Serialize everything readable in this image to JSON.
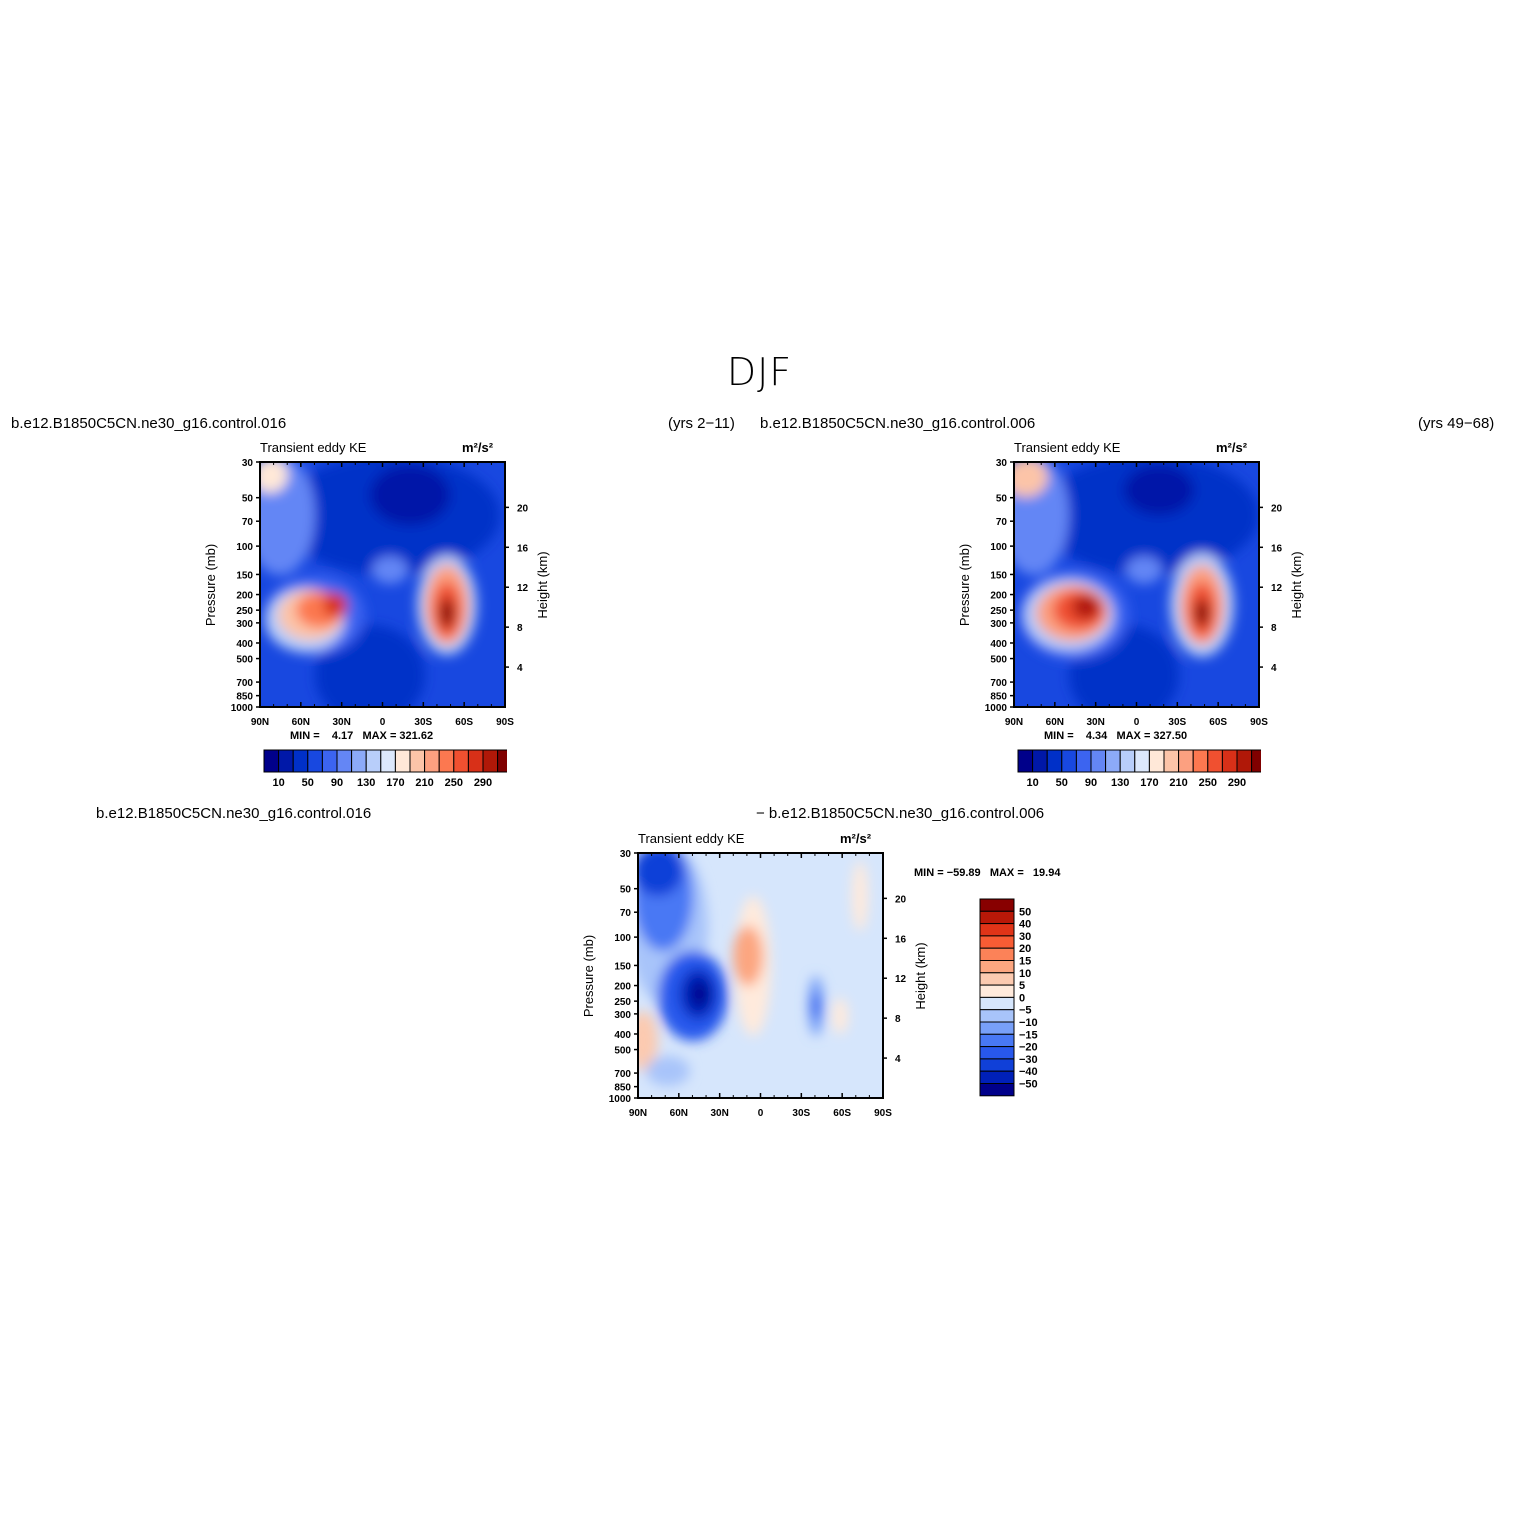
{
  "figure_title": "DJF",
  "top_left_case": "b.e12.B1850C5CN.ne30_g16.control.016",
  "top_left_years": "(yrs 2−11)",
  "top_right_case": "b.e12.B1850C5CN.ne30_g16.control.006",
  "top_right_years": "(yrs 49−68)",
  "bottom_case_a": "b.e12.B1850C5CN.ne30_g16.control.016",
  "bottom_case_b": "− b.e12.B1850C5CN.ne30_g16.control.006",
  "colors": {
    "abs_palette": [
      "#00008a",
      "#0018a8",
      "#0030c8",
      "#1848e0",
      "#3c64f0",
      "#6486f5",
      "#8caaf8",
      "#b8cefa",
      "#dce8fc",
      "#ffe8d8",
      "#fcc4a8",
      "#fca080",
      "#fc7850",
      "#f05030",
      "#d83018",
      "#b01808",
      "#800000"
    ],
    "diff_palette": [
      "#00008a",
      "#0020b8",
      "#1040d8",
      "#2858ec",
      "#4878f4",
      "#78a0f8",
      "#a8c4fa",
      "#d6e6fc",
      "#ffeadc",
      "#fccab0",
      "#fca680",
      "#fc8258",
      "#f85c34",
      "#e03418",
      "#b81808",
      "#880000"
    ]
  },
  "chart_data": [
    {
      "type": "heatmap",
      "title": "Transient eddy KE",
      "units": "m²/s²",
      "ylabel": "Pressure (mb)",
      "ylabel_right": "Height (km)",
      "x_ticks": [
        "90N",
        "60N",
        "30N",
        "0",
        "30S",
        "60S",
        "90S"
      ],
      "y_ticks": [
        "30",
        "50",
        "70",
        "100",
        "150",
        "200",
        "250",
        "300",
        "400",
        "500",
        "700",
        "850",
        "1000"
      ],
      "y_ticks_right": [
        "20",
        "16",
        "12",
        "8",
        "4"
      ],
      "min_max": "MIN =    4.17   MAX = 321.62",
      "colorbar_labels": [
        "10",
        "50",
        "90",
        "130",
        "170",
        "210",
        "250",
        "290"
      ],
      "min": 4.17,
      "max": 321.62
    },
    {
      "type": "heatmap",
      "title": "Transient eddy KE",
      "units": "m²/s²",
      "ylabel": "Pressure (mb)",
      "ylabel_right": "Height (km)",
      "x_ticks": [
        "90N",
        "60N",
        "30N",
        "0",
        "30S",
        "60S",
        "90S"
      ],
      "y_ticks": [
        "30",
        "50",
        "70",
        "100",
        "150",
        "200",
        "250",
        "300",
        "400",
        "500",
        "700",
        "850",
        "1000"
      ],
      "y_ticks_right": [
        "20",
        "16",
        "12",
        "8",
        "4"
      ],
      "min_max": "MIN =    4.34   MAX = 327.50",
      "colorbar_labels": [
        "10",
        "50",
        "90",
        "130",
        "170",
        "210",
        "250",
        "290"
      ],
      "min": 4.34,
      "max": 327.5
    },
    {
      "type": "heatmap",
      "title": "Transient eddy KE",
      "units": "m²/s²",
      "ylabel": "Pressure (mb)",
      "ylabel_right": "Height (km)",
      "x_ticks": [
        "90N",
        "60N",
        "30N",
        "0",
        "30S",
        "60S",
        "90S"
      ],
      "y_ticks": [
        "30",
        "50",
        "70",
        "100",
        "150",
        "200",
        "250",
        "300",
        "400",
        "500",
        "700",
        "850",
        "1000"
      ],
      "y_ticks_right": [
        "20",
        "16",
        "12",
        "8",
        "4"
      ],
      "min_max": "MIN = −59.89   MAX =   19.94",
      "colorbar_labels": [
        "50",
        "40",
        "30",
        "20",
        "15",
        "10",
        "5",
        "0",
        "−5",
        "−10",
        "−15",
        "−20",
        "−30",
        "−40",
        "−50"
      ],
      "min": -59.89,
      "max": 19.94
    }
  ]
}
